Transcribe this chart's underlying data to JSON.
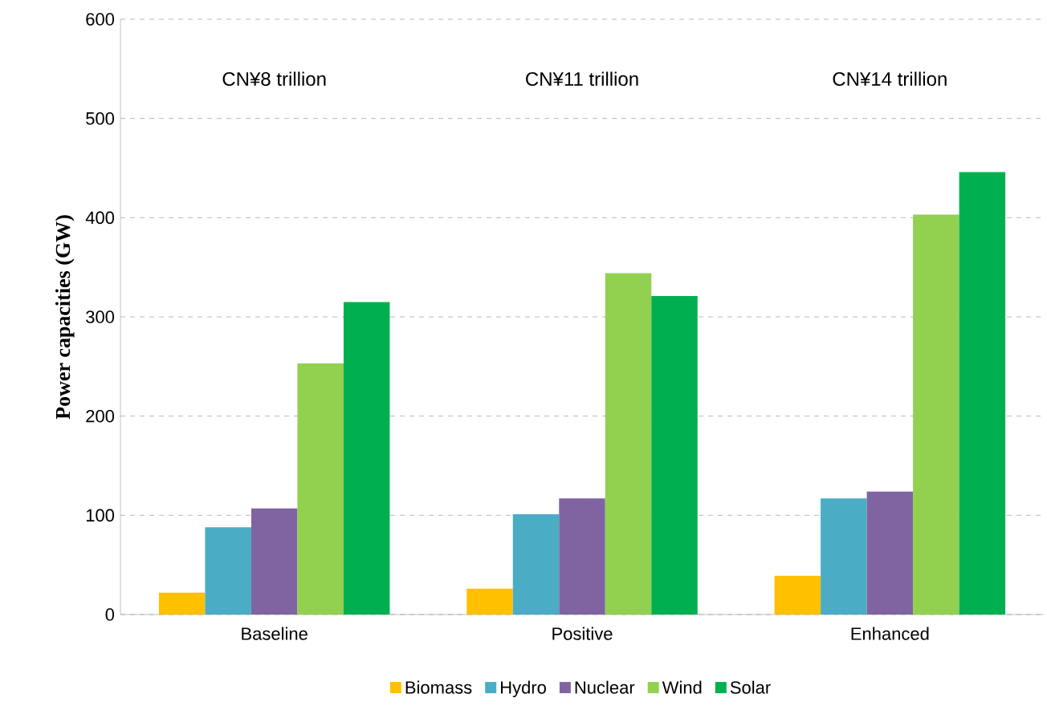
{
  "chart_data": {
    "type": "bar",
    "ylabel": "Power capacities (GW)",
    "categories": [
      "Baseline",
      "Positive",
      "Enhanced"
    ],
    "series": [
      {
        "name": "Biomass",
        "color": "#ffc000",
        "values": [
          22,
          26,
          39
        ]
      },
      {
        "name": "Hydro",
        "color": "#4bacc6",
        "values": [
          88,
          101,
          117
        ]
      },
      {
        "name": "Nuclear",
        "color": "#8064a2",
        "values": [
          107,
          117,
          124
        ]
      },
      {
        "name": "Wind",
        "color": "#92d050",
        "values": [
          253,
          344,
          403
        ]
      },
      {
        "name": "Solar",
        "color": "#00b050",
        "values": [
          315,
          321,
          446
        ]
      }
    ],
    "ylim": [
      0,
      600
    ],
    "yticks": [
      0,
      100,
      200,
      300,
      400,
      500,
      600
    ],
    "grid": "y",
    "legend": "bottom",
    "annotations": [
      "CN¥8 trillion",
      "CN¥11 trillion",
      "CN¥14 trillion"
    ]
  }
}
